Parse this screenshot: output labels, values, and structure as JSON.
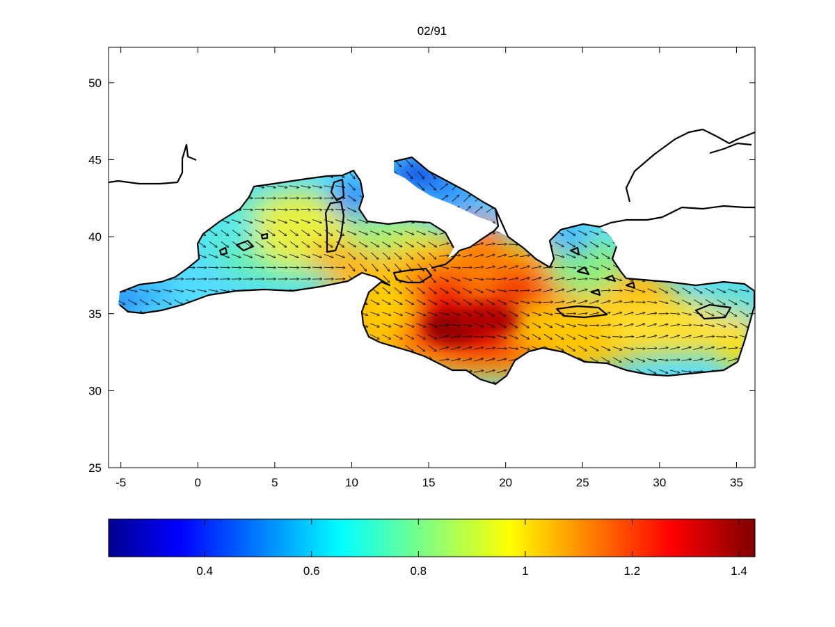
{
  "figure": {
    "title": "02/91",
    "map": {
      "x_range": [
        -5.8,
        36.2
      ],
      "y_range": [
        25,
        52.3
      ],
      "x_ticks": [
        -5,
        0,
        5,
        10,
        15,
        20,
        25,
        30,
        35
      ],
      "y_ticks": [
        25,
        30,
        35,
        40,
        45,
        50
      ],
      "land_color": "#ffffff",
      "coast_color": "#000000"
    },
    "colorbar": {
      "range": [
        0.22,
        1.43
      ],
      "ticks": [
        "0.4",
        "0.6",
        "0.8",
        "1",
        "1.2",
        "1.4"
      ],
      "tick_values": [
        0.4,
        0.6,
        0.8,
        1.0,
        1.2,
        1.4
      ],
      "colormap": "jet"
    }
  },
  "chart_data": {
    "type": "heatmap",
    "title": "02/91",
    "xlabel": "",
    "ylabel": "",
    "xlim": [
      -5.8,
      36.2
    ],
    "ylim": [
      25,
      52.3
    ],
    "x_tick_labels": [
      "-5",
      "0",
      "5",
      "10",
      "15",
      "20",
      "25",
      "30",
      "35"
    ],
    "y_tick_labels": [
      "25",
      "30",
      "35",
      "40",
      "45",
      "50"
    ],
    "colorbar_range": [
      0.22,
      1.43
    ],
    "colorbar_ticks": [
      "0.4",
      "0.6",
      "0.8",
      "1",
      "1.2",
      "1.4"
    ],
    "field_hotspots": [
      {
        "lon": 17,
        "lat": 34.3,
        "value": 1.42
      },
      {
        "lon": 21,
        "lat": 35.2,
        "value": 1.25
      },
      {
        "lon": 14.5,
        "lat": 36.2,
        "value": 1.1
      },
      {
        "lon": 29,
        "lat": 33.8,
        "value": 1.02
      },
      {
        "lon": 8.5,
        "lat": 38.5,
        "value": 0.98
      },
      {
        "lon": 6.5,
        "lat": 40.8,
        "value": 0.92
      }
    ],
    "field_lows": [
      {
        "lon": 14.2,
        "lat": 44.2,
        "value": 0.3
      },
      {
        "lon": 9.5,
        "lat": 43.3,
        "value": 0.35
      },
      {
        "lon": -5,
        "lat": 36,
        "value": 0.35
      },
      {
        "lon": 25.5,
        "lat": 39.8,
        "value": 0.5
      }
    ],
    "vectors": "wind/current arrows over sea cells, predominantly pointing east/southeast"
  }
}
